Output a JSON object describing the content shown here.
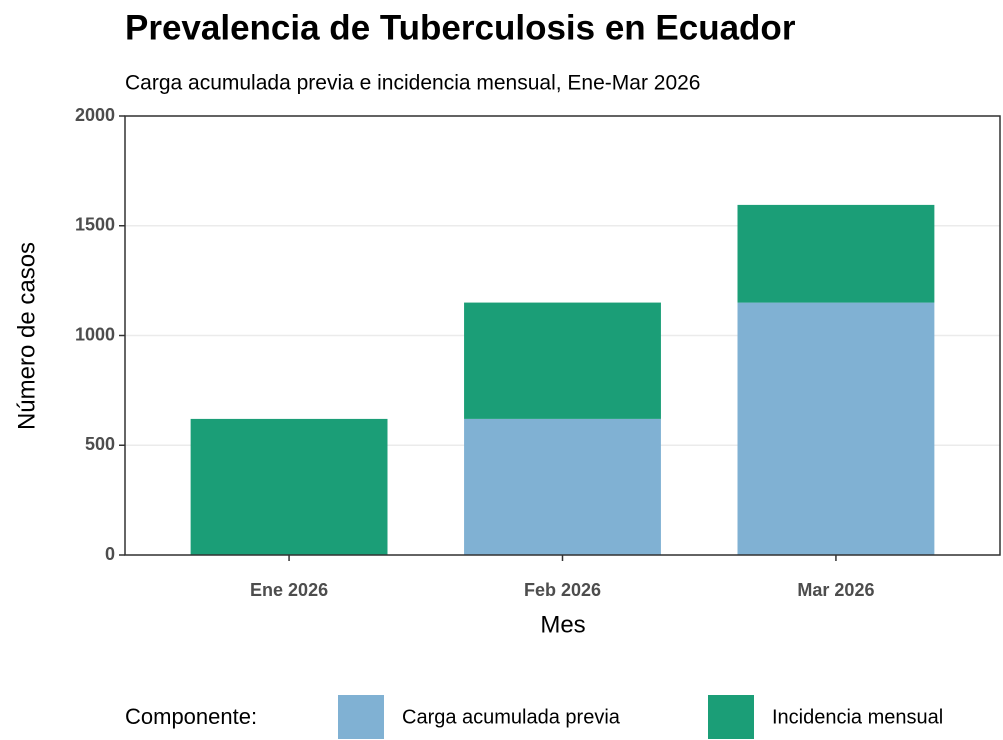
{
  "chart_data": {
    "type": "stacked_bar",
    "title": "Prevalencia de Tuberculosis en Ecuador",
    "subtitle": "Carga acumulada previa e incidencia mensual, Ene-Mar 2026",
    "x_label": "Mes",
    "y_label": "Número de casos",
    "categories": [
      "Ene 2026",
      "Feb 2026",
      "Mar 2026"
    ],
    "series": [
      {
        "name": "Carga acumulada previa",
        "color": "#80b1d3",
        "values": [
          0,
          620,
          1150
        ]
      },
      {
        "name": "Incidencia mensual",
        "color": "#1b9e77",
        "values": [
          620,
          530,
          445
        ]
      }
    ],
    "ylim": [
      0,
      2000
    ],
    "yticks": [
      0,
      500,
      1000,
      1500,
      2000
    ],
    "grid": true,
    "legend_title": "Componente:",
    "legend_position": "bottom"
  }
}
